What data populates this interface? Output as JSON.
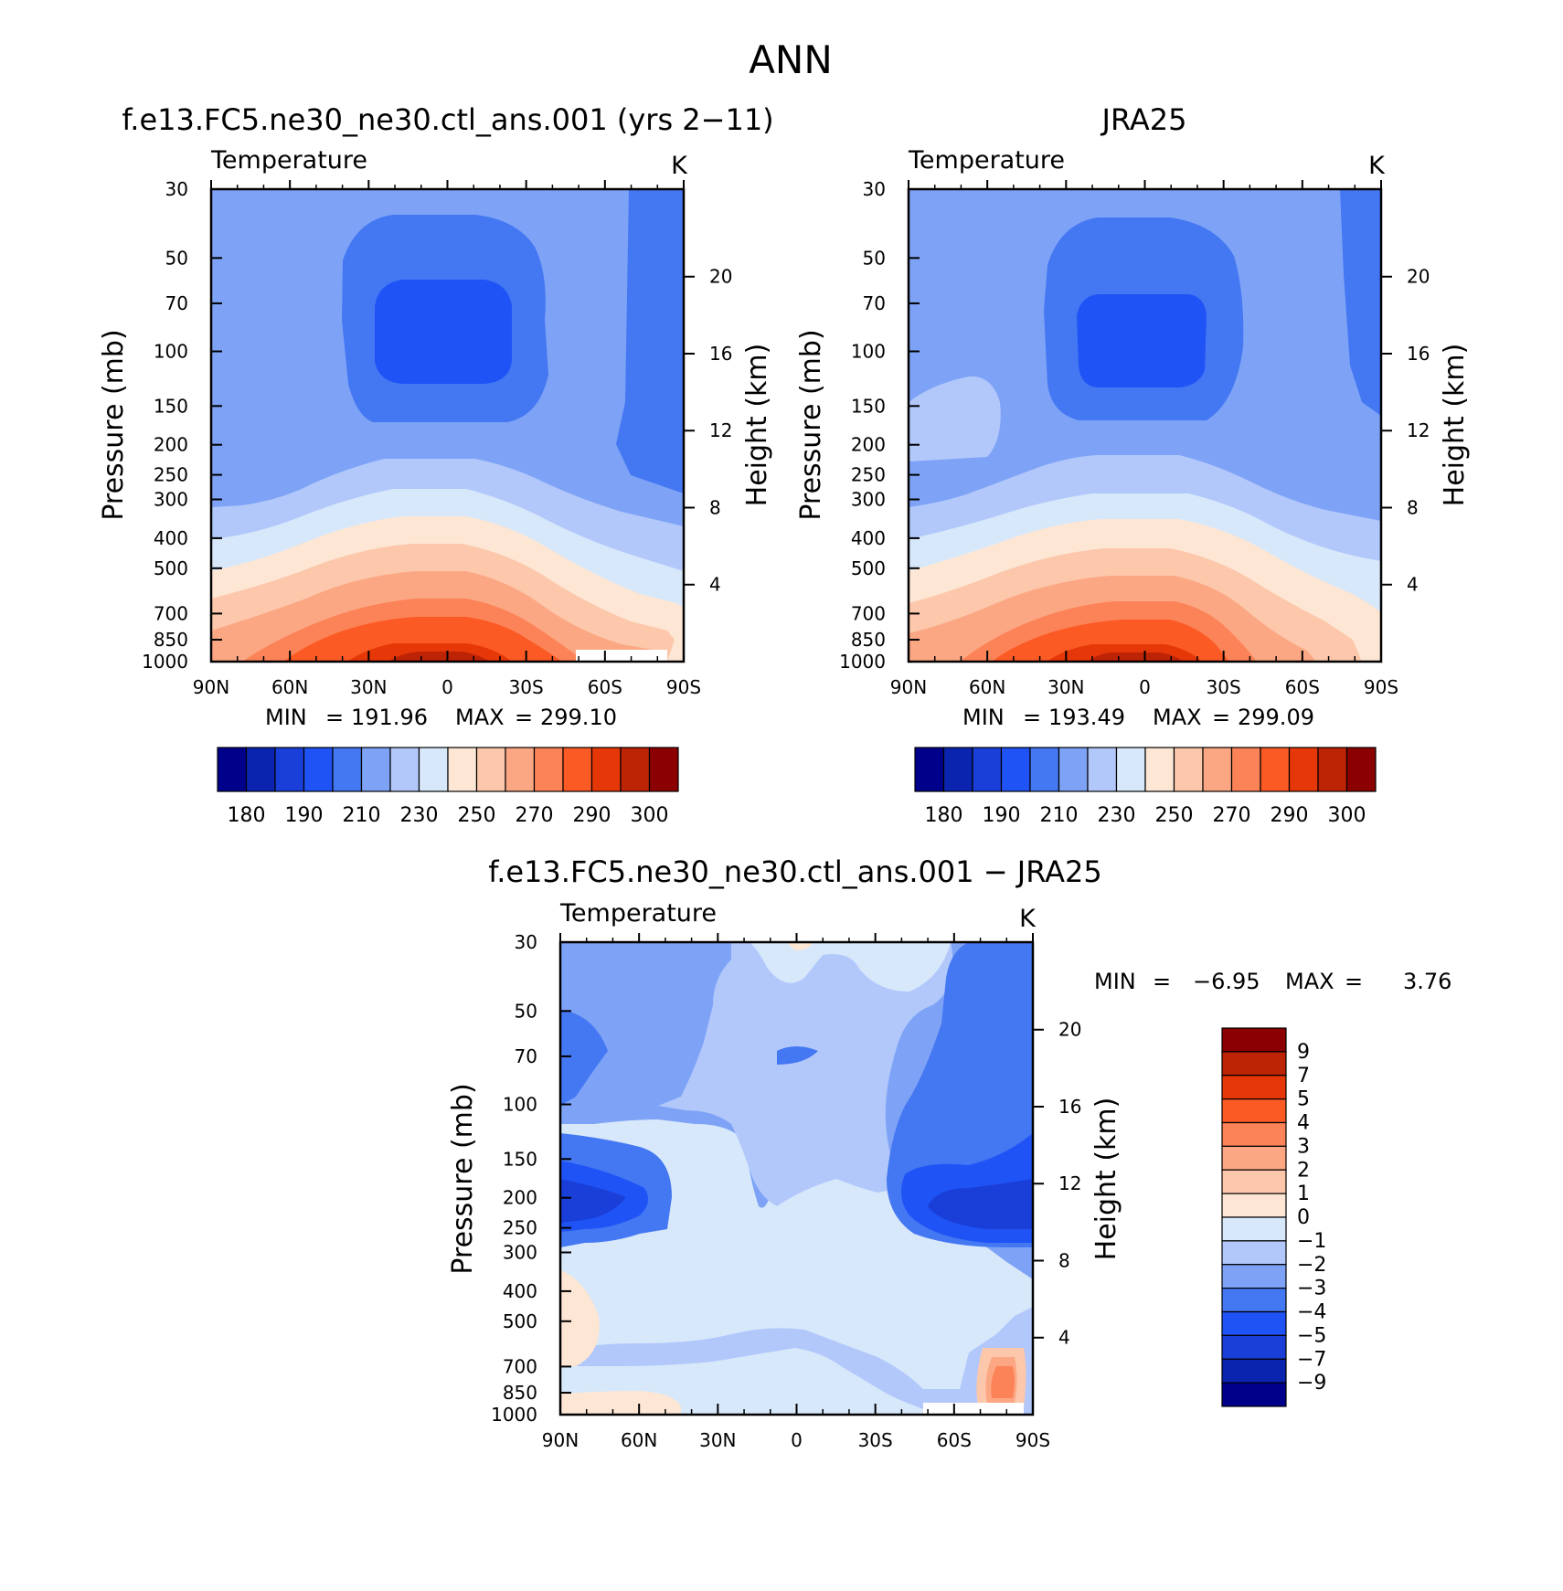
{
  "figure": {
    "title": "ANN"
  },
  "colors": {
    "abs_palette": [
      "#00008b",
      "#0a24b0",
      "#1a3fd8",
      "#1f53f5",
      "#4477f2",
      "#7ea3f6",
      "#b2c8fb",
      "#d7e8fb",
      "#fde6d4",
      "#fcc7ab",
      "#fca783",
      "#fc8358",
      "#fb5a24",
      "#e63708",
      "#bd2305",
      "#8b0000"
    ],
    "diff_palette": [
      "#00008b",
      "#0a24b0",
      "#1a3fd8",
      "#1f53f5",
      "#4477f2",
      "#7ea3f6",
      "#b2c8fb",
      "#d7e8fb",
      "#fde6d4",
      "#fcc7ab",
      "#fca783",
      "#fc8358",
      "#fb5a24",
      "#e63708",
      "#bd2305",
      "#8b0000"
    ]
  },
  "chart_data": [
    {
      "type": "contour",
      "id": "model",
      "title": "f.e13.FC5.ne30_ne30.ctl_ans.001 (yrs 2−11)",
      "subtitle_left": "Temperature",
      "units": "K",
      "ylabel": "Pressure (mb)",
      "ylabel2": "Height (km)",
      "x_ticks": [
        "90N",
        "60N",
        "30N",
        "0",
        "30S",
        "60S",
        "90S"
      ],
      "y_ticks": [
        "30",
        "50",
        "70",
        "100",
        "150",
        "200",
        "250",
        "300",
        "400",
        "500",
        "700",
        "850",
        "1000"
      ],
      "height_ticks": [
        "20",
        "16",
        "12",
        "8",
        "4"
      ],
      "min_label": "MIN",
      "max_label": "MAX",
      "min": "191.96",
      "max": "299.10",
      "colorbar_labels": [
        "180",
        "190",
        "210",
        "230",
        "250",
        "270",
        "290",
        "300"
      ]
    },
    {
      "type": "contour",
      "id": "obs",
      "title": "JRA25",
      "subtitle_left": "Temperature",
      "units": "K",
      "ylabel": "Pressure (mb)",
      "ylabel2": "Height (km)",
      "x_ticks": [
        "90N",
        "60N",
        "30N",
        "0",
        "30S",
        "60S",
        "90S"
      ],
      "y_ticks": [
        "30",
        "50",
        "70",
        "100",
        "150",
        "200",
        "250",
        "300",
        "400",
        "500",
        "700",
        "850",
        "1000"
      ],
      "height_ticks": [
        "20",
        "16",
        "12",
        "8",
        "4"
      ],
      "min_label": "MIN",
      "max_label": "MAX",
      "min": "193.49",
      "max": "299.09",
      "colorbar_labels": [
        "180",
        "190",
        "210",
        "230",
        "250",
        "270",
        "290",
        "300"
      ]
    },
    {
      "type": "contour",
      "id": "diff",
      "title": "f.e13.FC5.ne30_ne30.ctl_ans.001 − JRA25",
      "subtitle_left": "Temperature",
      "units": "K",
      "ylabel": "Pressure (mb)",
      "ylabel2": "Height (km)",
      "x_ticks": [
        "90N",
        "60N",
        "30N",
        "0",
        "30S",
        "60S",
        "90S"
      ],
      "y_ticks": [
        "30",
        "50",
        "70",
        "100",
        "150",
        "200",
        "250",
        "300",
        "400",
        "500",
        "700",
        "850",
        "1000"
      ],
      "height_ticks": [
        "20",
        "16",
        "12",
        "8",
        "4"
      ],
      "min_label": "MIN",
      "max_label": "MAX",
      "min": "−6.95",
      "max": "3.76",
      "colorbar_labels": [
        "9",
        "7",
        "5",
        "4",
        "3",
        "2",
        "1",
        "0",
        "−1",
        "−2",
        "−3",
        "−4",
        "−5",
        "−7",
        "−9"
      ]
    }
  ]
}
